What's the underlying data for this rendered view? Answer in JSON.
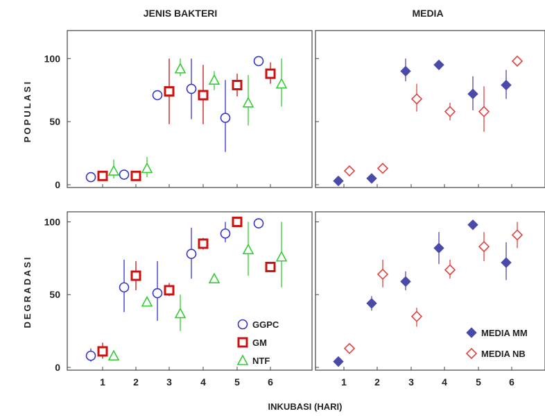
{
  "colors": {
    "GGPC": "#3333cc",
    "GM": "#cc1111",
    "NTF": "#33cc33",
    "MEDIA_MM": "#4a4aa8",
    "MEDIA_NB": "#e04040"
  },
  "chart_data": [
    {
      "type": "scatter",
      "panel": "top-left",
      "column_title": "JENIS BAKTERI",
      "row_title": "POPULASI",
      "x_ticks": [
        "1",
        "2",
        "3",
        "4",
        "5",
        "6"
      ],
      "y_ticks": [
        "0",
        "50",
        "100"
      ],
      "ylim": [
        0,
        120
      ],
      "series": [
        {
          "name": "GGPC",
          "marker": "circle",
          "color": "#3333cc",
          "points": [
            {
              "x": 1,
              "y": 6,
              "lo": 6,
              "hi": 6
            },
            {
              "x": 2,
              "y": 8,
              "lo": 8,
              "hi": 8
            },
            {
              "x": 3,
              "y": 71,
              "lo": 71,
              "hi": 71
            },
            {
              "x": 4,
              "y": 76,
              "lo": 52,
              "hi": 100
            },
            {
              "x": 5,
              "y": 53,
              "lo": 26,
              "hi": 83
            },
            {
              "x": 6,
              "y": 98,
              "lo": 98,
              "hi": 98
            }
          ]
        },
        {
          "name": "GM",
          "marker": "square",
          "color": "#cc1111",
          "points": [
            {
              "x": 1,
              "y": 7,
              "lo": 7,
              "hi": 7
            },
            {
              "x": 2,
              "y": 7,
              "lo": 7,
              "hi": 7
            },
            {
              "x": 3,
              "y": 74,
              "lo": 48,
              "hi": 100
            },
            {
              "x": 4,
              "y": 71,
              "lo": 48,
              "hi": 95
            },
            {
              "x": 5,
              "y": 79,
              "lo": 70,
              "hi": 88
            },
            {
              "x": 6,
              "y": 88,
              "lo": 80,
              "hi": 97
            }
          ]
        },
        {
          "name": "NTF",
          "marker": "triangle",
          "color": "#33cc33",
          "points": [
            {
              "x": 1,
              "y": 11,
              "lo": 5,
              "hi": 20
            },
            {
              "x": 2,
              "y": 13,
              "lo": 6,
              "hi": 22
            },
            {
              "x": 3,
              "y": 92,
              "lo": 86,
              "hi": 100
            },
            {
              "x": 4,
              "y": 83,
              "lo": 75,
              "hi": 90
            },
            {
              "x": 5,
              "y": 65,
              "lo": 47,
              "hi": 87
            },
            {
              "x": 6,
              "y": 80,
              "lo": 62,
              "hi": 100
            }
          ]
        }
      ]
    },
    {
      "type": "scatter",
      "panel": "top-right",
      "column_title": "MEDIA",
      "x_ticks": [
        "1",
        "2",
        "3",
        "4",
        "5",
        "6"
      ],
      "ylim": [
        0,
        120
      ],
      "series": [
        {
          "name": "MEDIA MM",
          "marker": "diamond-filled",
          "color": "#4a4aa8",
          "points": [
            {
              "x": 1,
              "y": 3,
              "lo": 3,
              "hi": 3
            },
            {
              "x": 2,
              "y": 5,
              "lo": 5,
              "hi": 5
            },
            {
              "x": 3,
              "y": 90,
              "lo": 82,
              "hi": 100
            },
            {
              "x": 4,
              "y": 95,
              "lo": 95,
              "hi": 95
            },
            {
              "x": 5,
              "y": 72,
              "lo": 59,
              "hi": 86
            },
            {
              "x": 6,
              "y": 79,
              "lo": 68,
              "hi": 91
            }
          ]
        },
        {
          "name": "MEDIA NB",
          "marker": "diamond-open",
          "color": "#e04040",
          "points": [
            {
              "x": 1,
              "y": 11,
              "lo": 8,
              "hi": 15
            },
            {
              "x": 2,
              "y": 13,
              "lo": 9,
              "hi": 17
            },
            {
              "x": 3,
              "y": 68,
              "lo": 58,
              "hi": 80
            },
            {
              "x": 4,
              "y": 58,
              "lo": 51,
              "hi": 65
            },
            {
              "x": 5,
              "y": 58,
              "lo": 42,
              "hi": 78
            },
            {
              "x": 6,
              "y": 98,
              "lo": 98,
              "hi": 98
            }
          ]
        }
      ]
    },
    {
      "type": "scatter",
      "panel": "bottom-left",
      "row_title": "DEGRADASI",
      "x_ticks": [
        "1",
        "2",
        "3",
        "4",
        "5",
        "6"
      ],
      "y_ticks": [
        "0",
        "50",
        "100"
      ],
      "ylim": [
        0,
        105
      ],
      "series": [
        {
          "name": "GGPC",
          "marker": "circle",
          "color": "#3333cc",
          "points": [
            {
              "x": 1,
              "y": 8,
              "lo": 4,
              "hi": 13
            },
            {
              "x": 2,
              "y": 55,
              "lo": 38,
              "hi": 74
            },
            {
              "x": 3,
              "y": 51,
              "lo": 32,
              "hi": 73
            },
            {
              "x": 4,
              "y": 78,
              "lo": 61,
              "hi": 96
            },
            {
              "x": 5,
              "y": 92,
              "lo": 86,
              "hi": 100
            },
            {
              "x": 6,
              "y": 99,
              "lo": 99,
              "hi": 99
            }
          ]
        },
        {
          "name": "GM",
          "marker": "square",
          "color": "#cc1111",
          "points": [
            {
              "x": 1,
              "y": 11,
              "lo": 6,
              "hi": 17
            },
            {
              "x": 2,
              "y": 63,
              "lo": 53,
              "hi": 73
            },
            {
              "x": 3,
              "y": 53,
              "lo": 49,
              "hi": 58
            },
            {
              "x": 4,
              "y": 85,
              "lo": 81,
              "hi": 89
            },
            {
              "x": 5,
              "y": 100,
              "lo": 100,
              "hi": 100
            },
            {
              "x": 6,
              "y": 69,
              "lo": 69,
              "hi": 69
            }
          ]
        },
        {
          "name": "NTF",
          "marker": "triangle",
          "color": "#33cc33",
          "points": [
            {
              "x": 1,
              "y": 8,
              "lo": 8,
              "hi": 8
            },
            {
              "x": 2,
              "y": 45,
              "lo": 45,
              "hi": 45
            },
            {
              "x": 3,
              "y": 37,
              "lo": 25,
              "hi": 50
            },
            {
              "x": 4,
              "y": 61,
              "lo": 61,
              "hi": 61
            },
            {
              "x": 5,
              "y": 81,
              "lo": 63,
              "hi": 100
            },
            {
              "x": 6,
              "y": 76,
              "lo": 55,
              "hi": 100
            }
          ]
        }
      ],
      "legend": [
        "GGPC",
        "GM",
        "NTF"
      ],
      "legend_position": "bottom-right"
    },
    {
      "type": "scatter",
      "panel": "bottom-right",
      "x_ticks": [
        "1",
        "2",
        "3",
        "4",
        "5",
        "6"
      ],
      "ylim": [
        0,
        105
      ],
      "series": [
        {
          "name": "MEDIA MM",
          "marker": "diamond-filled",
          "color": "#4a4aa8",
          "points": [
            {
              "x": 1,
              "y": 4,
              "lo": 4,
              "hi": 4
            },
            {
              "x": 2,
              "y": 44,
              "lo": 39,
              "hi": 49
            },
            {
              "x": 3,
              "y": 59,
              "lo": 53,
              "hi": 66
            },
            {
              "x": 4,
              "y": 82,
              "lo": 71,
              "hi": 93
            },
            {
              "x": 5,
              "y": 98,
              "lo": 98,
              "hi": 98
            },
            {
              "x": 6,
              "y": 72,
              "lo": 60,
              "hi": 86
            }
          ]
        },
        {
          "name": "MEDIA NB",
          "marker": "diamond-open",
          "color": "#e04040",
          "points": [
            {
              "x": 1,
              "y": 13,
              "lo": 13,
              "hi": 13
            },
            {
              "x": 2,
              "y": 64,
              "lo": 55,
              "hi": 74
            },
            {
              "x": 3,
              "y": 35,
              "lo": 28,
              "hi": 41
            },
            {
              "x": 4,
              "y": 67,
              "lo": 61,
              "hi": 74
            },
            {
              "x": 5,
              "y": 83,
              "lo": 73,
              "hi": 93
            },
            {
              "x": 6,
              "y": 91,
              "lo": 82,
              "hi": 100
            }
          ]
        }
      ],
      "legend": [
        "MEDIA MM",
        "MEDIA NB"
      ],
      "legend_position": "bottom-right"
    }
  ],
  "xlabel": "INKUBASI  (HARI)"
}
